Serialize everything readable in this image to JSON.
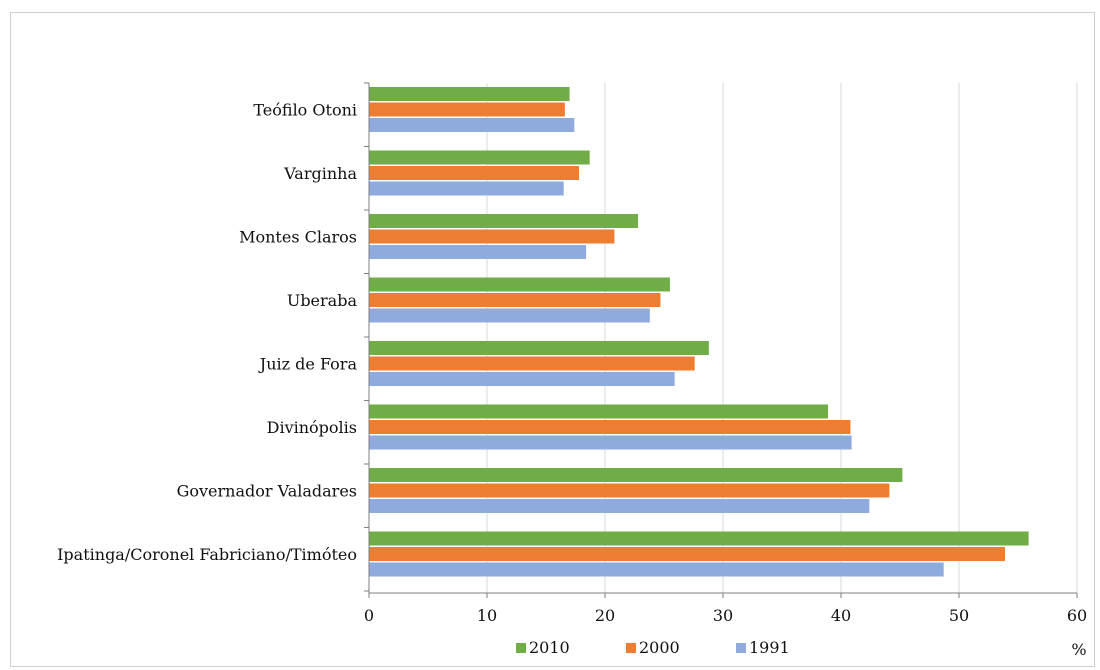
{
  "chart_data": {
    "type": "bar",
    "orientation": "horizontal",
    "categories": [
      "Teófilo Otoni",
      "Varginha",
      "Montes Claros",
      "Uberaba",
      "Juiz de Fora",
      "Divinópolis",
      "Governador Valadares",
      "Ipatinga/Coronel Fabriciano/Timóteo"
    ],
    "series": [
      {
        "name": "2010",
        "color": "#70ad47",
        "values": [
          17.0,
          18.7,
          22.8,
          25.5,
          28.8,
          38.9,
          45.2,
          55.9
        ]
      },
      {
        "name": "2000",
        "color": "#ed7d31",
        "values": [
          16.6,
          17.8,
          20.8,
          24.7,
          27.6,
          40.8,
          44.1,
          53.9
        ]
      },
      {
        "name": "1991",
        "color": "#8faadc",
        "values": [
          17.4,
          16.5,
          18.4,
          23.8,
          25.9,
          40.9,
          42.4,
          48.7
        ]
      }
    ],
    "xlim": [
      0,
      60
    ],
    "xticks": [
      0,
      10,
      20,
      30,
      40,
      50,
      60
    ],
    "x_unit": "%",
    "grid": true,
    "legend_position": "bottom"
  }
}
